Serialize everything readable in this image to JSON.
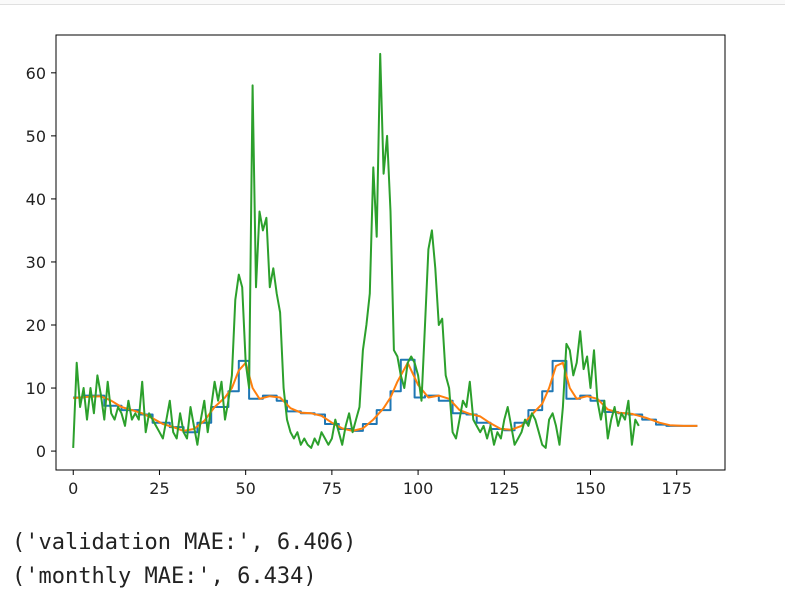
{
  "chart_data": {
    "type": "line",
    "xlim": [
      -5,
      189
    ],
    "ylim": [
      -3,
      66
    ],
    "xticks": [
      0,
      25,
      50,
      75,
      100,
      125,
      150,
      175
    ],
    "yticks": [
      0,
      10,
      20,
      30,
      40,
      50,
      60
    ],
    "grid": false,
    "series": [
      {
        "color": "#1f77b4",
        "points": [
          [
            0,
            8.5
          ],
          [
            3,
            8.5
          ],
          [
            3,
            8.8
          ],
          [
            9,
            8.8
          ],
          [
            9,
            7.2
          ],
          [
            14,
            7.2
          ],
          [
            14,
            6.5
          ],
          [
            19,
            6.5
          ],
          [
            19,
            5.8
          ],
          [
            23,
            5.8
          ],
          [
            23,
            4.5
          ],
          [
            28,
            4.5
          ],
          [
            28,
            3.8
          ],
          [
            32,
            3.8
          ],
          [
            32,
            3.0
          ],
          [
            36,
            3.0
          ],
          [
            36,
            4.5
          ],
          [
            40,
            4.5
          ],
          [
            40,
            7.0
          ],
          [
            45,
            7.0
          ],
          [
            45,
            9.5
          ],
          [
            48,
            9.5
          ],
          [
            48,
            14.3
          ],
          [
            51,
            14.3
          ],
          [
            51,
            8.3
          ],
          [
            55,
            8.3
          ],
          [
            55,
            8.8
          ],
          [
            59,
            8.8
          ],
          [
            59,
            8.0
          ],
          [
            62,
            8.0
          ],
          [
            62,
            6.3
          ],
          [
            66,
            6.3
          ],
          [
            66,
            6.0
          ],
          [
            70,
            6.0
          ],
          [
            70,
            5.8
          ],
          [
            73,
            5.8
          ],
          [
            73,
            4.3
          ],
          [
            77,
            4.3
          ],
          [
            77,
            3.5
          ],
          [
            81,
            3.5
          ],
          [
            81,
            3.2
          ],
          [
            84,
            3.2
          ],
          [
            84,
            4.3
          ],
          [
            88,
            4.3
          ],
          [
            88,
            6.5
          ],
          [
            92,
            6.5
          ],
          [
            92,
            9.5
          ],
          [
            95,
            9.5
          ],
          [
            95,
            14.5
          ],
          [
            99,
            14.5
          ],
          [
            99,
            8.5
          ],
          [
            102,
            8.5
          ],
          [
            102,
            8.8
          ],
          [
            106,
            8.8
          ],
          [
            106,
            8.0
          ],
          [
            110,
            8.0
          ],
          [
            110,
            6.0
          ],
          [
            114,
            6.0
          ],
          [
            114,
            5.8
          ],
          [
            117,
            5.8
          ],
          [
            117,
            4.5
          ],
          [
            121,
            4.5
          ],
          [
            121,
            3.5
          ],
          [
            125,
            3.5
          ],
          [
            125,
            3.3
          ],
          [
            128,
            3.3
          ],
          [
            128,
            4.5
          ],
          [
            132,
            4.5
          ],
          [
            132,
            6.5
          ],
          [
            136,
            6.5
          ],
          [
            136,
            9.5
          ],
          [
            139,
            9.5
          ],
          [
            139,
            14.3
          ],
          [
            143,
            14.3
          ],
          [
            143,
            8.3
          ],
          [
            147,
            8.3
          ],
          [
            147,
            8.8
          ],
          [
            150,
            8.8
          ],
          [
            150,
            8.0
          ],
          [
            154,
            8.0
          ],
          [
            154,
            6.2
          ],
          [
            158,
            6.2
          ],
          [
            158,
            6.0
          ],
          [
            161,
            6.0
          ],
          [
            161,
            5.8
          ],
          [
            165,
            5.8
          ],
          [
            165,
            5.0
          ],
          [
            169,
            5.0
          ],
          [
            169,
            4.2
          ],
          [
            172,
            4.2
          ],
          [
            172,
            4.0
          ],
          [
            181,
            4.0
          ]
        ]
      },
      {
        "color": "#ff7f0e",
        "points": [
          [
            0,
            8.4
          ],
          [
            4,
            8.6
          ],
          [
            8,
            8.7
          ],
          [
            11,
            8.0
          ],
          [
            14,
            7.0
          ],
          [
            17,
            6.5
          ],
          [
            20,
            6.0
          ],
          [
            23,
            5.2
          ],
          [
            26,
            4.3
          ],
          [
            29,
            3.8
          ],
          [
            32,
            3.2
          ],
          [
            35,
            3.5
          ],
          [
            38,
            4.8
          ],
          [
            41,
            7.0
          ],
          [
            44,
            8.5
          ],
          [
            46,
            10.0
          ],
          [
            48,
            12.8
          ],
          [
            50,
            14.0
          ],
          [
            52,
            10.0
          ],
          [
            54,
            8.3
          ],
          [
            57,
            8.7
          ],
          [
            60,
            8.5
          ],
          [
            63,
            6.8
          ],
          [
            66,
            6.1
          ],
          [
            69,
            6.0
          ],
          [
            72,
            5.6
          ],
          [
            75,
            4.5
          ],
          [
            78,
            3.6
          ],
          [
            81,
            3.2
          ],
          [
            84,
            3.6
          ],
          [
            87,
            5.0
          ],
          [
            90,
            6.8
          ],
          [
            92,
            8.5
          ],
          [
            94,
            11.0
          ],
          [
            97,
            14.0
          ],
          [
            100,
            10.5
          ],
          [
            103,
            8.5
          ],
          [
            106,
            8.8
          ],
          [
            109,
            8.3
          ],
          [
            112,
            6.5
          ],
          [
            115,
            5.9
          ],
          [
            118,
            5.5
          ],
          [
            121,
            4.4
          ],
          [
            124,
            3.5
          ],
          [
            127,
            3.4
          ],
          [
            130,
            4.0
          ],
          [
            133,
            5.8
          ],
          [
            136,
            7.5
          ],
          [
            138,
            10.0
          ],
          [
            140,
            13.5
          ],
          [
            142,
            14.0
          ],
          [
            144,
            10.0
          ],
          [
            146,
            8.3
          ],
          [
            149,
            8.7
          ],
          [
            152,
            8.3
          ],
          [
            155,
            6.6
          ],
          [
            158,
            6.1
          ],
          [
            162,
            5.9
          ],
          [
            166,
            5.3
          ],
          [
            170,
            4.5
          ],
          [
            173,
            4.1
          ],
          [
            177,
            4.0
          ],
          [
            181,
            4.0
          ]
        ]
      },
      {
        "color": "#2ca02c",
        "points": [
          [
            0,
            0.5
          ],
          [
            1,
            14
          ],
          [
            2,
            7
          ],
          [
            3,
            10
          ],
          [
            4,
            5
          ],
          [
            5,
            10
          ],
          [
            6,
            6
          ],
          [
            7,
            12
          ],
          [
            8,
            9
          ],
          [
            9,
            5
          ],
          [
            10,
            11
          ],
          [
            11,
            6
          ],
          [
            12,
            5
          ],
          [
            13,
            7
          ],
          [
            14,
            6
          ],
          [
            15,
            4
          ],
          [
            16,
            8
          ],
          [
            17,
            5
          ],
          [
            18,
            6
          ],
          [
            19,
            5
          ],
          [
            20,
            11
          ],
          [
            21,
            3
          ],
          [
            22,
            6
          ],
          [
            23,
            5
          ],
          [
            24,
            4
          ],
          [
            25,
            3
          ],
          [
            26,
            2
          ],
          [
            27,
            5
          ],
          [
            28,
            8
          ],
          [
            29,
            3
          ],
          [
            30,
            2
          ],
          [
            31,
            6
          ],
          [
            32,
            3
          ],
          [
            33,
            2
          ],
          [
            34,
            7
          ],
          [
            35,
            4
          ],
          [
            36,
            1
          ],
          [
            37,
            5
          ],
          [
            38,
            8
          ],
          [
            39,
            3
          ],
          [
            40,
            7
          ],
          [
            41,
            11
          ],
          [
            42,
            8
          ],
          [
            43,
            11
          ],
          [
            44,
            5
          ],
          [
            45,
            8
          ],
          [
            46,
            12
          ],
          [
            47,
            24
          ],
          [
            48,
            28
          ],
          [
            49,
            26
          ],
          [
            50,
            14
          ],
          [
            51,
            10
          ],
          [
            52,
            58
          ],
          [
            53,
            26
          ],
          [
            54,
            38
          ],
          [
            55,
            35
          ],
          [
            56,
            37
          ],
          [
            57,
            26
          ],
          [
            58,
            29
          ],
          [
            59,
            25
          ],
          [
            60,
            22
          ],
          [
            61,
            10
          ],
          [
            62,
            5
          ],
          [
            63,
            3
          ],
          [
            64,
            2
          ],
          [
            65,
            3
          ],
          [
            66,
            1
          ],
          [
            67,
            2
          ],
          [
            68,
            1
          ],
          [
            69,
            0.5
          ],
          [
            70,
            2
          ],
          [
            71,
            1
          ],
          [
            72,
            3
          ],
          [
            73,
            2
          ],
          [
            74,
            1
          ],
          [
            75,
            2
          ],
          [
            76,
            5
          ],
          [
            77,
            3
          ],
          [
            78,
            1
          ],
          [
            79,
            4
          ],
          [
            80,
            6
          ],
          [
            81,
            3
          ],
          [
            82,
            5
          ],
          [
            83,
            7
          ],
          [
            84,
            16
          ],
          [
            85,
            20
          ],
          [
            86,
            25
          ],
          [
            87,
            45
          ],
          [
            88,
            34
          ],
          [
            89,
            63
          ],
          [
            90,
            44
          ],
          [
            91,
            50
          ],
          [
            92,
            38
          ],
          [
            93,
            16
          ],
          [
            94,
            15
          ],
          [
            95,
            12
          ],
          [
            96,
            10
          ],
          [
            97,
            14
          ],
          [
            98,
            15
          ],
          [
            99,
            14
          ],
          [
            100,
            12
          ],
          [
            101,
            8
          ],
          [
            102,
            20
          ],
          [
            103,
            32
          ],
          [
            104,
            35
          ],
          [
            105,
            29
          ],
          [
            106,
            20
          ],
          [
            107,
            21
          ],
          [
            108,
            12
          ],
          [
            109,
            10
          ],
          [
            110,
            3
          ],
          [
            111,
            2
          ],
          [
            112,
            5
          ],
          [
            113,
            8
          ],
          [
            114,
            7
          ],
          [
            115,
            11
          ],
          [
            116,
            5
          ],
          [
            117,
            4
          ],
          [
            118,
            3
          ],
          [
            119,
            4
          ],
          [
            120,
            2
          ],
          [
            121,
            4
          ],
          [
            122,
            1
          ],
          [
            123,
            3
          ],
          [
            124,
            2
          ],
          [
            125,
            5
          ],
          [
            126,
            7
          ],
          [
            127,
            4
          ],
          [
            128,
            1
          ],
          [
            129,
            2
          ],
          [
            130,
            3
          ],
          [
            131,
            5
          ],
          [
            132,
            4
          ],
          [
            133,
            6
          ],
          [
            134,
            5
          ],
          [
            135,
            3
          ],
          [
            136,
            1
          ],
          [
            137,
            0.5
          ],
          [
            138,
            5
          ],
          [
            139,
            6
          ],
          [
            140,
            4
          ],
          [
            141,
            1
          ],
          [
            142,
            7
          ],
          [
            143,
            17
          ],
          [
            144,
            16
          ],
          [
            145,
            12
          ],
          [
            146,
            14
          ],
          [
            147,
            19
          ],
          [
            148,
            13
          ],
          [
            149,
            15
          ],
          [
            150,
            10
          ],
          [
            151,
            16
          ],
          [
            152,
            8
          ],
          [
            153,
            5
          ],
          [
            154,
            8
          ],
          [
            155,
            2
          ],
          [
            156,
            5
          ],
          [
            157,
            7
          ],
          [
            158,
            4
          ],
          [
            159,
            6
          ],
          [
            160,
            5
          ],
          [
            161,
            8
          ],
          [
            162,
            1
          ],
          [
            163,
            5
          ],
          [
            164,
            4
          ]
        ]
      }
    ]
  },
  "output_lines": [
    "('validation MAE:', 6.406)",
    "('monthly MAE:', 6.434)"
  ]
}
